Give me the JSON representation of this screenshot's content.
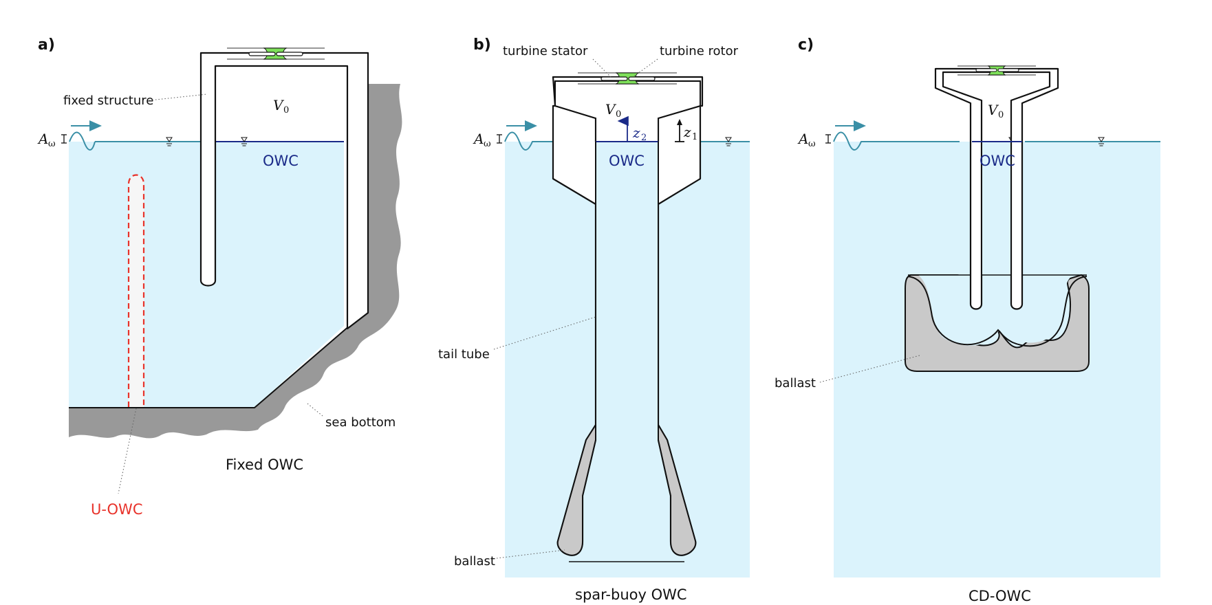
{
  "panels": {
    "a": {
      "tag": "a)",
      "title": "Fixed OWC",
      "labels": {
        "fixed_structure": "fixed structure",
        "volume": "V",
        "volume_sub": "0",
        "owc": "OWC",
        "sea_bottom": "sea bottom",
        "u_owc": "U-OWC",
        "amplitude": "A",
        "amplitude_sub": "ω"
      }
    },
    "b": {
      "tag": "b)",
      "title": "spar-buoy OWC",
      "labels": {
        "turbine_stator": "turbine stator",
        "turbine_rotor": "turbine rotor",
        "volume": "V",
        "volume_sub": "0",
        "z2": "z",
        "z2_sub": "2",
        "z1": "z",
        "z1_sub": "1",
        "owc": "OWC",
        "tail_tube": "tail tube",
        "ballast": "ballast",
        "amplitude": "A",
        "amplitude_sub": "ω"
      }
    },
    "c": {
      "tag": "c)",
      "title": "CD-OWC",
      "labels": {
        "volume": "V",
        "volume_sub": "0",
        "owc": "OWC",
        "ballast": "ballast",
        "amplitude": "A",
        "amplitude_sub": "ω"
      }
    }
  },
  "colors": {
    "water": "#dbf3fc",
    "structure": "#ffffff",
    "ground": "#999999",
    "ballast": "#c9c9c9",
    "turbine": "#7ee05a",
    "u_owc": "#e8322a",
    "owc_text": "#1a2a88",
    "surface": "#3a8fa6"
  },
  "icons": {
    "water_level": "water-level-triangle-icon",
    "wave_arrow": "wave-direction-arrow-icon",
    "turbine": "turbine-icon"
  }
}
